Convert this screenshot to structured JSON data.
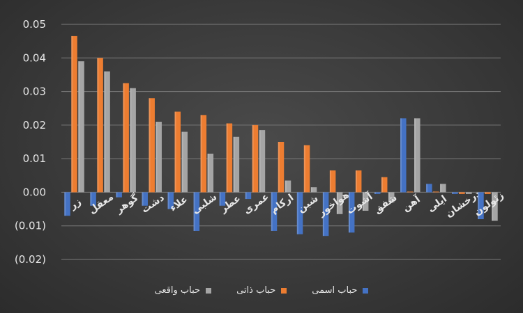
{
  "chart_data": {
    "type": "bar",
    "categories": [
      "زر",
      "معقل",
      "گوهر",
      "دشت",
      "علاء",
      "شلبی",
      "عطر",
      "عمری",
      "ارکام",
      "شبن",
      "هواخور",
      "آشوت",
      "شفق",
      "آهن",
      "ایلی",
      "درخشان",
      "زئولون"
    ],
    "series": [
      {
        "name": "حباب اسمی",
        "color": "#4472c4",
        "values": [
          -0.007,
          -0.004,
          -0.0015,
          -0.004,
          -0.005,
          -0.0115,
          -0.004,
          -0.002,
          -0.0115,
          -0.0125,
          -0.013,
          -0.012,
          -0.0005,
          0.022,
          0.0025,
          -0.0005,
          -0.008
        ]
      },
      {
        "name": "حباب ذاتی",
        "color": "#ed7d31",
        "values": [
          0.0465,
          0.04,
          0.0325,
          0.028,
          0.024,
          0.023,
          0.0205,
          0.02,
          0.015,
          0.014,
          0.0065,
          0.0065,
          0.0045,
          0.0002,
          0.0002,
          -0.0005,
          -0.0005
        ]
      },
      {
        "name": "حباب واقعی",
        "color": "#a5a5a5",
        "values": [
          0.039,
          0.036,
          0.031,
          0.021,
          0.018,
          0.0115,
          0.0165,
          0.0185,
          0.0035,
          0.0015,
          -0.0065,
          -0.0055,
          -0.003,
          0.022,
          0.0025,
          -0.0005,
          -0.0085
        ]
      }
    ],
    "yticks": [
      "0.05",
      "0.04",
      "0.03",
      "0.02",
      "0.01",
      "0.00",
      "(0.01)",
      "(0.02)"
    ],
    "ylim": [
      -0.02,
      0.05
    ],
    "grid": true,
    "legend_position": "bottom"
  }
}
